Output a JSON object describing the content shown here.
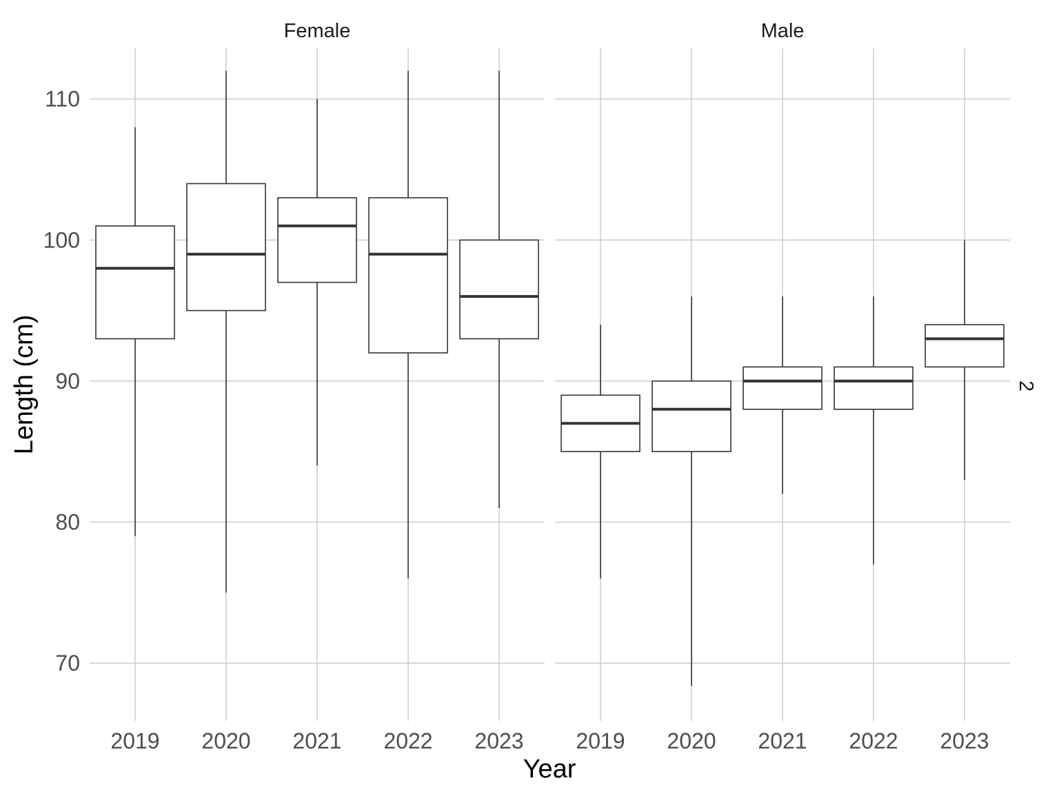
{
  "chart_data": {
    "type": "boxplot",
    "title": "",
    "xlabel": "Year",
    "ylabel": "Length (cm)",
    "ylim": [
      65.9,
      113.6
    ],
    "yticks": [
      70,
      80,
      90,
      100,
      110
    ],
    "grid": true,
    "right_strip_label": "2",
    "categories": [
      "2019",
      "2020",
      "2021",
      "2022",
      "2023"
    ],
    "panels": [
      {
        "name": "Female",
        "boxes": [
          {
            "x": "2019",
            "min": 79,
            "q1": 93,
            "median": 98,
            "q3": 101,
            "max": 108
          },
          {
            "x": "2020",
            "min": 75,
            "q1": 95,
            "median": 99,
            "q3": 104,
            "max": 112
          },
          {
            "x": "2021",
            "min": 84,
            "q1": 97,
            "median": 101,
            "q3": 103,
            "max": 110
          },
          {
            "x": "2022",
            "min": 76,
            "q1": 92,
            "median": 99,
            "q3": 103,
            "max": 112
          },
          {
            "x": "2023",
            "min": 81,
            "q1": 93,
            "median": 96,
            "q3": 100,
            "max": 112
          }
        ]
      },
      {
        "name": "Male",
        "boxes": [
          {
            "x": "2019",
            "min": 76,
            "q1": 85,
            "median": 87,
            "q3": 89,
            "max": 94
          },
          {
            "x": "2020",
            "min": 68.4,
            "q1": 85,
            "median": 88,
            "q3": 90,
            "max": 96
          },
          {
            "x": "2021",
            "min": 82,
            "q1": 88,
            "median": 90,
            "q3": 91,
            "max": 96
          },
          {
            "x": "2022",
            "min": 77,
            "q1": 88,
            "median": 90,
            "q3": 91,
            "max": 96
          },
          {
            "x": "2023",
            "min": 83,
            "q1": 91,
            "median": 93,
            "q3": 94,
            "max": 100
          }
        ]
      }
    ]
  }
}
